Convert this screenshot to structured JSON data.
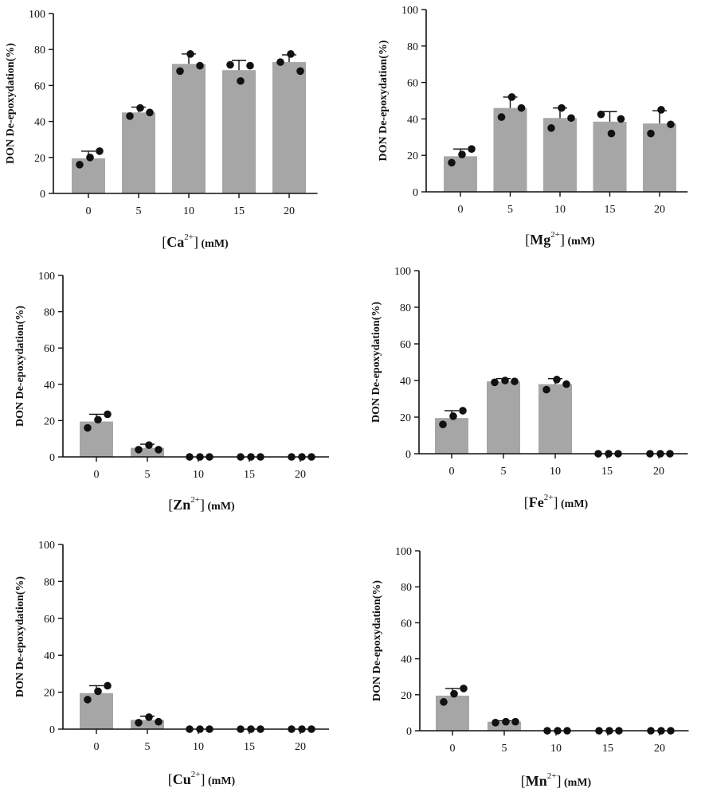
{
  "chart_data": [
    {
      "type": "bar",
      "ion": "Ca",
      "charge": "2+",
      "unit": "(mM)",
      "ylabel": "DON De-epoxydation(%)",
      "categories": [
        "0",
        "5",
        "10",
        "15",
        "20"
      ],
      "values": [
        19.5,
        45,
        72,
        68.5,
        73
      ],
      "error": [
        4,
        3,
        5.5,
        5.5,
        4
      ],
      "points": [
        [
          16,
          20,
          23.5
        ],
        [
          43,
          47.5,
          45
        ],
        [
          68,
          77.5,
          71
        ],
        [
          71.5,
          62.5,
          71
        ],
        [
          73,
          77.5,
          68
        ]
      ],
      "yticks": [
        "0",
        "20",
        "40",
        "60",
        "80",
        "100"
      ],
      "ylim": [
        0,
        100
      ]
    },
    {
      "type": "bar",
      "ion": "Mg",
      "charge": "2+",
      "unit": "(mM)",
      "ylabel": "DON De-epoxydation(%)",
      "categories": [
        "0",
        "5",
        "10",
        "15",
        "20"
      ],
      "values": [
        19.5,
        46,
        40.5,
        38.5,
        37.5
      ],
      "error": [
        4,
        6,
        5.5,
        5.5,
        7
      ],
      "points": [
        [
          16,
          20.5,
          23.5
        ],
        [
          41,
          52,
          46
        ],
        [
          35,
          46,
          40.5
        ],
        [
          42.5,
          32,
          40
        ],
        [
          32,
          45,
          37
        ]
      ],
      "yticks": [
        "0",
        "20",
        "40",
        "60",
        "80",
        "100"
      ],
      "ylim": [
        0,
        100
      ]
    },
    {
      "type": "bar",
      "ion": "Zn",
      "charge": "2+",
      "unit": "(mM)",
      "ylabel": "DON De-epoxydation(%)",
      "categories": [
        "0",
        "5",
        "10",
        "15",
        "20"
      ],
      "values": [
        19.5,
        5,
        0,
        0,
        0
      ],
      "error": [
        4,
        2,
        0,
        0,
        0
      ],
      "points": [
        [
          16,
          20.5,
          23.5
        ],
        [
          4,
          6.5,
          4
        ],
        [
          0,
          0,
          0
        ],
        [
          0,
          0,
          0
        ],
        [
          0,
          0,
          0
        ]
      ],
      "yticks": [
        "0",
        "20",
        "40",
        "60",
        "80",
        "100"
      ],
      "ylim": [
        0,
        100
      ]
    },
    {
      "type": "bar",
      "ion": "Fe",
      "charge": "2+",
      "unit": "(mM)",
      "ylabel": "DON De-epoxydation(%)",
      "categories": [
        "0",
        "5",
        "10",
        "15",
        "20"
      ],
      "values": [
        19.5,
        39.5,
        38,
        0,
        0
      ],
      "error": [
        4,
        1.5,
        3,
        0,
        0
      ],
      "points": [
        [
          16,
          20.5,
          23.5
        ],
        [
          39,
          40,
          39.5
        ],
        [
          35,
          40.5,
          38
        ],
        [
          0,
          0,
          0
        ],
        [
          0,
          0,
          0
        ]
      ],
      "yticks": [
        "0",
        "20",
        "40",
        "60",
        "80",
        "100"
      ],
      "ylim": [
        0,
        100
      ]
    },
    {
      "type": "bar",
      "ion": "Cu",
      "charge": "2+",
      "unit": "(mM)",
      "ylabel": "DON De-epoxydation(%)",
      "categories": [
        "0",
        "5",
        "10",
        "15",
        "20"
      ],
      "values": [
        19.5,
        5,
        0,
        0,
        0
      ],
      "error": [
        4,
        2,
        0,
        0,
        0
      ],
      "points": [
        [
          16,
          20.5,
          23.5
        ],
        [
          3.5,
          6.5,
          4
        ],
        [
          0,
          0,
          0
        ],
        [
          0,
          0,
          0
        ],
        [
          0,
          0,
          0
        ]
      ],
      "yticks": [
        "0",
        "20",
        "40",
        "60",
        "80",
        "100"
      ],
      "ylim": [
        0,
        100
      ]
    },
    {
      "type": "bar",
      "ion": "Mn",
      "charge": "2+",
      "unit": "(mM)",
      "ylabel": "DON De-epoxydation(%)",
      "categories": [
        "0",
        "5",
        "10",
        "15",
        "20"
      ],
      "values": [
        19.5,
        5,
        0,
        0,
        0
      ],
      "error": [
        4,
        0.5,
        0,
        0,
        0
      ],
      "points": [
        [
          16,
          20.5,
          23.5
        ],
        [
          4.5,
          5,
          5
        ],
        [
          0,
          0,
          0
        ],
        [
          0,
          0,
          0
        ],
        [
          0,
          0,
          0
        ]
      ],
      "yticks": [
        "0",
        "20",
        "40",
        "60",
        "80",
        "100"
      ],
      "ylim": [
        0,
        100
      ]
    }
  ],
  "colors": {
    "bar": "#a6a6a6",
    "axis": "#111111",
    "point": "#111111"
  }
}
